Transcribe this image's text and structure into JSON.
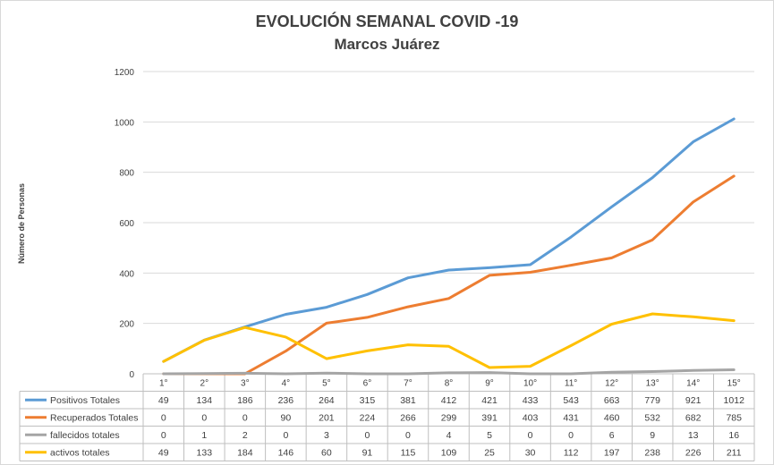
{
  "chart_data": {
    "type": "line",
    "title": "EVOLUCIÓN SEMANAL COVID -19",
    "subtitle": "Marcos Juárez",
    "xlabel": "",
    "ylabel": "Número de Personas",
    "ylim": [
      0,
      1200
    ],
    "yticks": [
      0,
      200,
      400,
      600,
      800,
      1000,
      1200
    ],
    "grid": true,
    "legend": "data-table-left",
    "categories": [
      "1°",
      "2°",
      "3°",
      "4°",
      "5°",
      "6°",
      "7°",
      "8°",
      "9°",
      "10°",
      "11°",
      "12°",
      "13°",
      "14°",
      "15°"
    ],
    "series": [
      {
        "name": "Positivos Totales",
        "color": "#5B9BD5",
        "values": [
          49,
          134,
          186,
          236,
          264,
          315,
          381,
          412,
          421,
          433,
          543,
          663,
          779,
          921,
          1012
        ]
      },
      {
        "name": "Recuperados Totales",
        "color": "#ED7D31",
        "values": [
          0,
          0,
          0,
          90,
          201,
          224,
          266,
          299,
          391,
          403,
          431,
          460,
          532,
          682,
          785
        ]
      },
      {
        "name": "fallecidos totales",
        "color": "#A5A5A5",
        "values": [
          0,
          1,
          2,
          0,
          3,
          0,
          0,
          4,
          5,
          0,
          0,
          6,
          9,
          13,
          16
        ]
      },
      {
        "name": "activos totales",
        "color": "#FFC000",
        "values": [
          49,
          133,
          184,
          146,
          60,
          91,
          115,
          109,
          25,
          30,
          112,
          197,
          238,
          226,
          211
        ]
      }
    ]
  }
}
